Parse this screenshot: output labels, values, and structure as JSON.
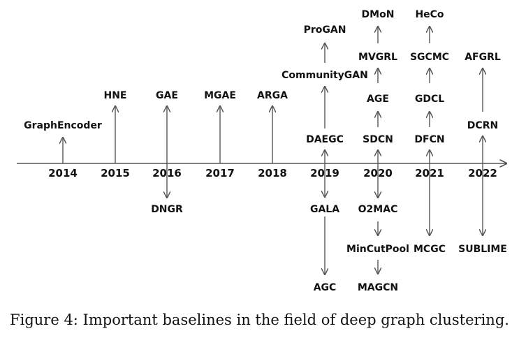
{
  "caption": "Figure 4: Important baselines in the field of deep graph clustering.",
  "years": [
    "2014",
    "2015",
    "2016",
    "2017",
    "2018",
    "2019",
    "2020",
    "2021",
    "2022"
  ],
  "methods": {
    "graphencoder": "GraphEncoder",
    "hne": "HNE",
    "gae": "GAE",
    "dngr": "DNGR",
    "mgae": "MGAE",
    "arga": "ARGA",
    "daegc": "DAEGC",
    "communitygan": "CommunityGAN",
    "progan": "ProGAN",
    "gala": "GALA",
    "agc": "AGC",
    "sdcn": "SDCN",
    "age": "AGE",
    "mvgrl": "MVGRL",
    "dmon": "DMoN",
    "o2mac": "O2MAC",
    "mincutpool": "MinCutPool",
    "magcn": "MAGCN",
    "dfcn": "DFCN",
    "dgcl": "GDCL",
    "sgcmc": "SGCMC",
    "heco": "HeCo",
    "mcgc": "MCGC",
    "dcrn": "DCRN",
    "afgrl": "AFGRL",
    "sublime": "SUBLIME"
  }
}
